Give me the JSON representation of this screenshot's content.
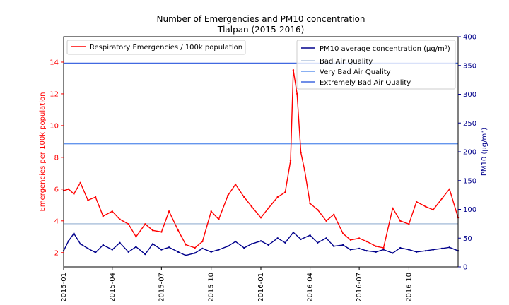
{
  "chart_data": {
    "type": "line",
    "title": "Number of Emergencies and PM10 concentration",
    "subtitle": "Tlalpan (2015-2016)",
    "xlabel": "",
    "ylabel_left": "Emergencies per 100k population",
    "ylabel_right": "PM10 (µg/m³)",
    "x_range": [
      "2015-01-01",
      "2016-12-31"
    ],
    "x_ticks": [
      "2015-01",
      "2015-04",
      "2015-07",
      "2015-10",
      "2016-01",
      "2016-04",
      "2016-07",
      "2016-10"
    ],
    "ylim_left": [
      1.1,
      15.6
    ],
    "ylim_right": [
      0,
      400
    ],
    "y_ticks_left": [
      2,
      4,
      6,
      8,
      10,
      12,
      14
    ],
    "y_ticks_right": [
      0,
      50,
      100,
      150,
      200,
      250,
      300,
      350,
      400
    ],
    "grid": false,
    "legend_left": {
      "placement": "top-left",
      "entries": [
        "Respiratory Emergencies / 100k population"
      ]
    },
    "legend_right": {
      "placement": "top-right",
      "entries": [
        "PM10 average concentration (µg/m³)",
        "Bad Air Quality",
        "Very Bad Air Quality",
        "Extremely Bad Air Quality"
      ]
    },
    "colors": {
      "emergencies": "#ff0000",
      "pm10": "#00008b",
      "bad": "#b0c4de",
      "very_bad": "#6495ed",
      "extremely_bad": "#4169e1",
      "left_axis": "#ff0000",
      "right_axis": "#00008b"
    },
    "thresholds": [
      {
        "name": "Bad Air Quality",
        "value": 75,
        "color": "#b0c4de"
      },
      {
        "name": "Very Bad Air Quality",
        "value": 214,
        "color": "#6495ed"
      },
      {
        "name": "Extremely Bad Air Quality",
        "value": 354,
        "color": "#4169e1"
      }
    ],
    "series": [
      {
        "name": "Respiratory Emergencies / 100k population",
        "axis": "left",
        "color": "#ff0000",
        "dates": [
          "2015-01-01",
          "2015-01-10",
          "2015-01-20",
          "2015-02-01",
          "2015-02-15",
          "2015-03-01",
          "2015-03-15",
          "2015-04-01",
          "2015-04-15",
          "2015-05-01",
          "2015-05-15",
          "2015-06-01",
          "2015-06-15",
          "2015-07-01",
          "2015-07-15",
          "2015-08-01",
          "2015-08-15",
          "2015-09-01",
          "2015-09-15",
          "2015-10-01",
          "2015-10-15",
          "2015-11-01",
          "2015-11-15",
          "2015-12-01",
          "2015-12-15",
          "2016-01-01",
          "2016-01-15",
          "2016-02-01",
          "2016-02-15",
          "2016-02-25",
          "2016-03-01",
          "2016-03-08",
          "2016-03-15",
          "2016-03-22",
          "2016-04-01",
          "2016-04-15",
          "2016-05-01",
          "2016-05-15",
          "2016-06-01",
          "2016-06-15",
          "2016-07-01",
          "2016-07-15",
          "2016-08-01",
          "2016-08-15",
          "2016-09-01",
          "2016-09-15",
          "2016-10-01",
          "2016-10-15",
          "2016-11-01",
          "2016-11-15",
          "2016-12-01",
          "2016-12-15",
          "2016-12-31"
        ],
        "values": [
          5.9,
          6.0,
          5.7,
          6.4,
          5.3,
          5.5,
          4.3,
          4.6,
          4.1,
          3.8,
          3.0,
          3.8,
          3.4,
          3.3,
          4.6,
          3.4,
          2.5,
          2.3,
          2.7,
          4.6,
          4.1,
          5.6,
          6.3,
          5.5,
          4.9,
          4.2,
          4.8,
          5.5,
          5.8,
          7.8,
          13.5,
          12.0,
          8.3,
          7.2,
          5.1,
          4.7,
          4.0,
          4.4,
          3.2,
          2.8,
          2.9,
          2.7,
          2.4,
          2.3,
          4.8,
          4.0,
          3.8,
          5.2,
          4.9,
          4.7,
          5.4,
          6.0,
          4.2
        ]
      },
      {
        "name": "PM10 average concentration (µg/m³)",
        "axis": "right",
        "color": "#00008b",
        "dates": [
          "2015-01-01",
          "2015-01-10",
          "2015-01-20",
          "2015-02-01",
          "2015-02-15",
          "2015-03-01",
          "2015-03-15",
          "2015-04-01",
          "2015-04-15",
          "2015-05-01",
          "2015-05-15",
          "2015-06-01",
          "2015-06-15",
          "2015-07-01",
          "2015-07-15",
          "2015-08-01",
          "2015-08-15",
          "2015-09-01",
          "2015-09-15",
          "2015-10-01",
          "2015-10-15",
          "2015-11-01",
          "2015-11-15",
          "2015-12-01",
          "2015-12-15",
          "2016-01-01",
          "2016-01-15",
          "2016-02-01",
          "2016-02-15",
          "2016-03-01",
          "2016-03-15",
          "2016-04-01",
          "2016-04-15",
          "2016-05-01",
          "2016-05-15",
          "2016-06-01",
          "2016-06-15",
          "2016-07-01",
          "2016-07-15",
          "2016-08-01",
          "2016-08-15",
          "2016-09-01",
          "2016-09-15",
          "2016-10-01",
          "2016-10-15",
          "2016-11-01",
          "2016-11-15",
          "2016-12-01",
          "2016-12-15",
          "2016-12-31"
        ],
        "values": [
          28,
          45,
          58,
          40,
          32,
          25,
          38,
          30,
          42,
          26,
          35,
          22,
          40,
          30,
          34,
          26,
          20,
          24,
          32,
          26,
          30,
          36,
          44,
          33,
          40,
          45,
          38,
          50,
          42,
          60,
          48,
          55,
          42,
          50,
          36,
          38,
          30,
          32,
          28,
          26,
          30,
          24,
          33,
          30,
          26,
          28,
          30,
          32,
          34,
          28
        ]
      }
    ]
  }
}
